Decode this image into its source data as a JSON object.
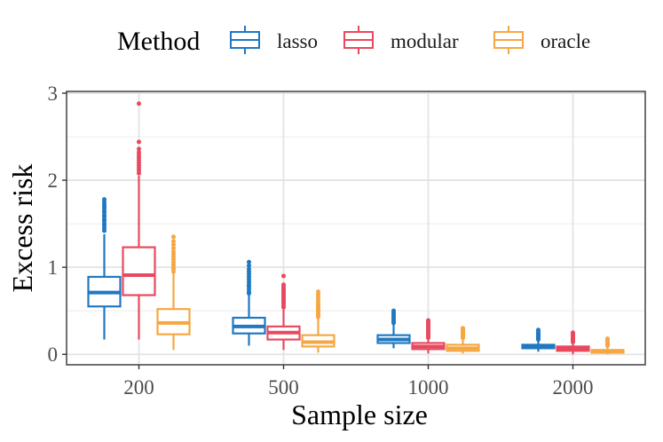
{
  "chart_data": {
    "type": "boxplot",
    "xlabel": "Sample size",
    "ylabel": "Excess risk",
    "categories": [
      "200",
      "500",
      "1000",
      "2000"
    ],
    "ylim": [
      -0.12,
      3.02
    ],
    "yticks": [
      0,
      1,
      2,
      3
    ],
    "grid": true,
    "legend": {
      "title": "Method",
      "position": "top"
    },
    "series": [
      {
        "name": "lasso",
        "color": "#1f78c1",
        "boxes": [
          {
            "q1": 0.55,
            "median": 0.71,
            "q3": 0.89,
            "whisker_low": 0.17,
            "whisker_high": 1.38,
            "outliers": [
              1.42,
              1.45,
              1.48,
              1.5,
              1.53,
              1.55,
              1.58,
              1.6,
              1.63,
              1.65,
              1.68,
              1.7,
              1.72,
              1.75,
              1.78
            ]
          },
          {
            "q1": 0.24,
            "median": 0.32,
            "q3": 0.42,
            "whisker_low": 0.1,
            "whisker_high": 0.68,
            "outliers": [
              0.7,
              0.72,
              0.75,
              0.78,
              0.8,
              0.83,
              0.86,
              0.89,
              0.92,
              0.95,
              0.98,
              1.02,
              1.06
            ]
          },
          {
            "q1": 0.13,
            "median": 0.17,
            "q3": 0.22,
            "whisker_low": 0.07,
            "whisker_high": 0.35,
            "outliers": [
              0.36,
              0.38,
              0.4,
              0.42,
              0.44,
              0.46,
              0.48,
              0.5
            ]
          },
          {
            "q1": 0.07,
            "median": 0.09,
            "q3": 0.11,
            "whisker_low": 0.03,
            "whisker_high": 0.16,
            "outliers": [
              0.17,
              0.18,
              0.19,
              0.2,
              0.21,
              0.22,
              0.23,
              0.24,
              0.26,
              0.28
            ]
          }
        ]
      },
      {
        "name": "modular",
        "color": "#e8495f",
        "boxes": [
          {
            "q1": 0.68,
            "median": 0.91,
            "q3": 1.23,
            "whisker_low": 0.17,
            "whisker_high": 2.05,
            "outliers": [
              2.08,
              2.11,
              2.14,
              2.17,
              2.2,
              2.23,
              2.26,
              2.29,
              2.32,
              2.36,
              2.44,
              2.88
            ]
          },
          {
            "q1": 0.17,
            "median": 0.25,
            "q3": 0.32,
            "whisker_low": 0.05,
            "whisker_high": 0.52,
            "outliers": [
              0.54,
              0.56,
              0.58,
              0.6,
              0.62,
              0.64,
              0.66,
              0.68,
              0.7,
              0.72,
              0.74,
              0.76,
              0.78,
              0.8,
              0.9
            ]
          },
          {
            "q1": 0.06,
            "median": 0.09,
            "q3": 0.13,
            "whisker_low": 0.01,
            "whisker_high": 0.18,
            "outliers": [
              0.19,
              0.21,
              0.23,
              0.25,
              0.27,
              0.29,
              0.31,
              0.33,
              0.35,
              0.37,
              0.39
            ]
          },
          {
            "q1": 0.04,
            "median": 0.06,
            "q3": 0.09,
            "whisker_low": 0.0,
            "whisker_high": 0.13,
            "outliers": [
              0.14,
              0.15,
              0.16,
              0.17,
              0.18,
              0.19,
              0.2,
              0.21,
              0.22,
              0.23,
              0.24,
              0.25
            ]
          }
        ]
      },
      {
        "name": "oracle",
        "color": "#f5a742",
        "boxes": [
          {
            "q1": 0.23,
            "median": 0.36,
            "q3": 0.52,
            "whisker_low": 0.05,
            "whisker_high": 0.93,
            "outliers": [
              0.95,
              0.98,
              1.0,
              1.03,
              1.06,
              1.09,
              1.12,
              1.15,
              1.18,
              1.22,
              1.26,
              1.3,
              1.35
            ]
          },
          {
            "q1": 0.09,
            "median": 0.14,
            "q3": 0.22,
            "whisker_low": 0.02,
            "whisker_high": 0.41,
            "outliers": [
              0.43,
              0.45,
              0.47,
              0.49,
              0.51,
              0.53,
              0.55,
              0.57,
              0.6,
              0.63,
              0.66,
              0.69,
              0.72
            ]
          },
          {
            "q1": 0.04,
            "median": 0.07,
            "q3": 0.11,
            "whisker_low": 0.01,
            "whisker_high": 0.18,
            "outliers": [
              0.19,
              0.2,
              0.21,
              0.22,
              0.23,
              0.24,
              0.25,
              0.26,
              0.27,
              0.28,
              0.29,
              0.3
            ]
          },
          {
            "q1": 0.02,
            "median": 0.03,
            "q3": 0.05,
            "whisker_low": 0.0,
            "whisker_high": 0.09,
            "outliers": [
              0.1,
              0.11,
              0.12,
              0.13,
              0.14,
              0.15,
              0.16,
              0.18
            ]
          }
        ]
      }
    ]
  }
}
